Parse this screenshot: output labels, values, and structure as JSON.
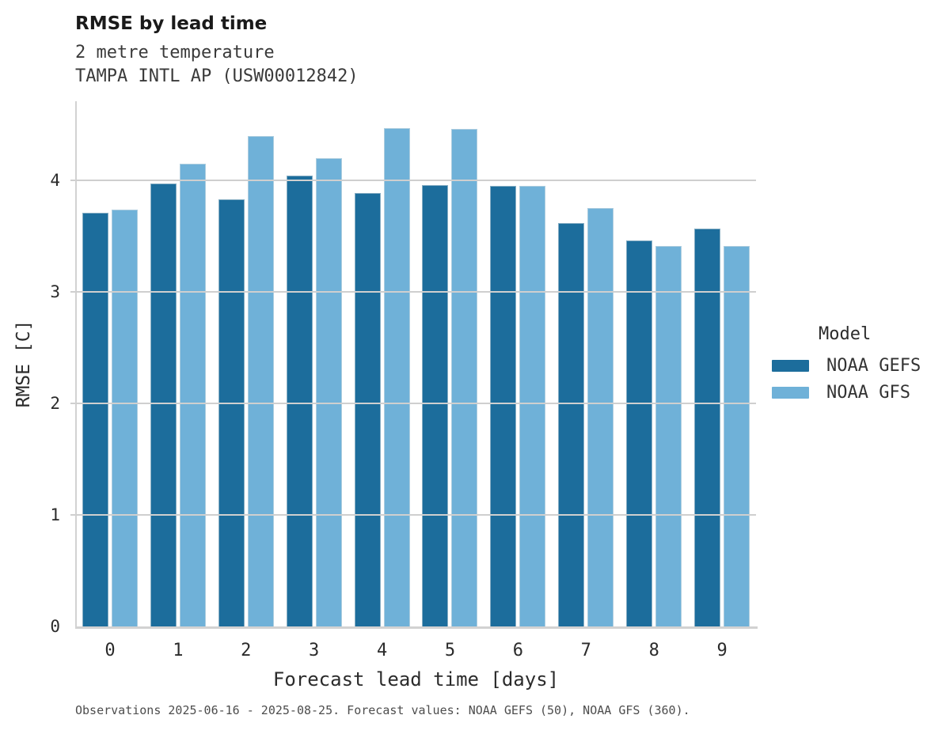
{
  "header": {
    "title": "RMSE by lead time",
    "subtitle_line1": "2 metre temperature",
    "subtitle_line2": "TAMPA INTL AP (USW00012842)"
  },
  "chart_data": {
    "type": "bar",
    "title": "RMSE by lead time",
    "subtitle": [
      "2 metre temperature",
      "TAMPA INTL AP (USW00012842)"
    ],
    "categories": [
      "0",
      "1",
      "2",
      "3",
      "4",
      "5",
      "6",
      "7",
      "8",
      "9"
    ],
    "series": [
      {
        "name": "NOAA GEFS",
        "color": "#1c6d9c",
        "values": [
          3.71,
          3.97,
          3.83,
          4.04,
          3.89,
          3.96,
          3.95,
          3.62,
          3.46,
          3.57
        ]
      },
      {
        "name": "NOAA GFS",
        "color": "#6fb1d8",
        "values": [
          3.74,
          4.15,
          4.4,
          4.2,
          4.47,
          4.46,
          3.95,
          3.75,
          3.41,
          3.41
        ]
      }
    ],
    "xlabel": "Forecast lead time [days]",
    "ylabel": "RMSE [C]",
    "ylim": [
      0,
      4.71
    ],
    "yticks": [
      0,
      1,
      2,
      3,
      4
    ],
    "grid": "horizontal",
    "legend_title": "Model",
    "legend_position": "right"
  },
  "legend": {
    "title": "Model",
    "entries": [
      {
        "label": "NOAA GEFS",
        "color": "#1c6d9c"
      },
      {
        "label": "NOAA GFS",
        "color": "#6fb1d8"
      }
    ]
  },
  "footer": {
    "caption": "Observations 2025-06-16 - 2025-08-25. Forecast values: NOAA GEFS (50), NOAA GFS (360)."
  },
  "colors": {
    "background": "#ffffff",
    "spine": "#d2d2d2",
    "gridline": "#cfcfcf",
    "title_text": "#1a1a1a",
    "subtitle_text": "#3a3a3a",
    "axis_text": "#2b2b2b",
    "caption_text": "#4d4d4d"
  }
}
